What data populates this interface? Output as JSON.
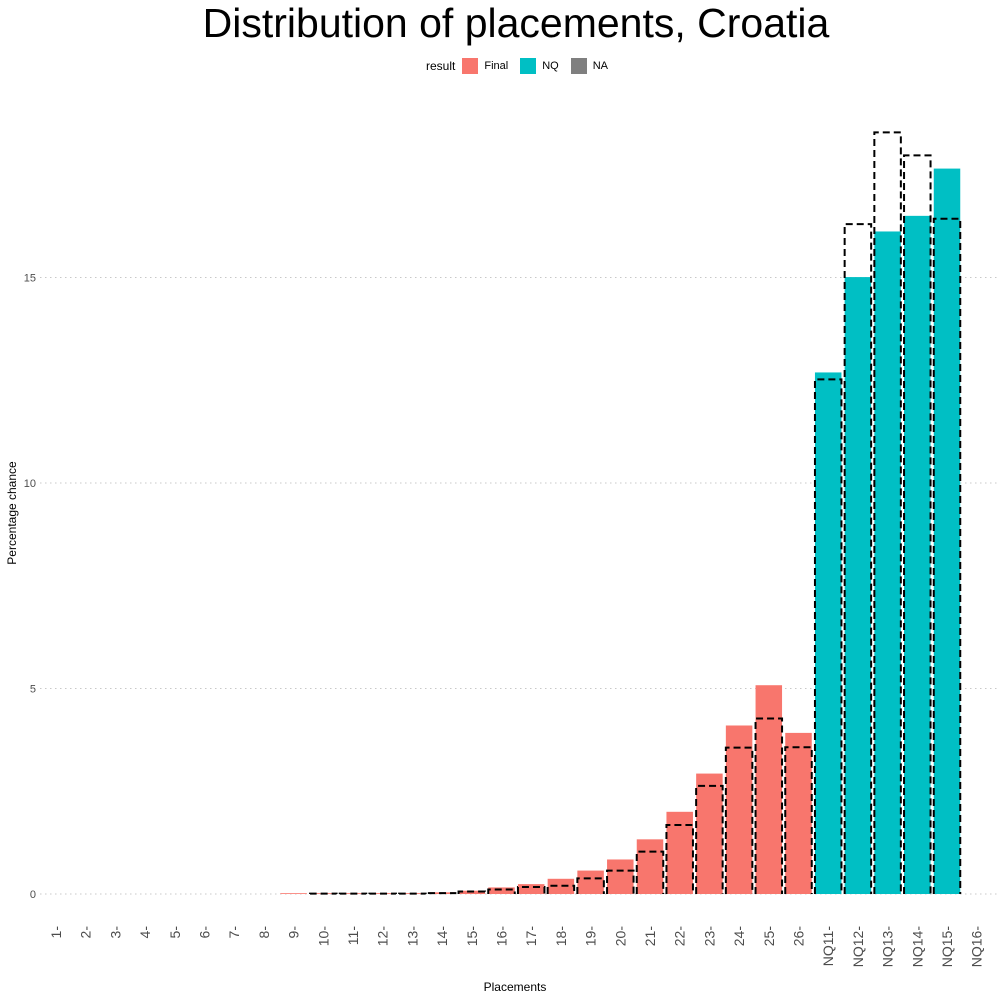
{
  "chart_data": {
    "type": "bar",
    "title": "Distribution of placements, Croatia",
    "xlabel": "Placements",
    "ylabel": "Percentage chance",
    "legend": {
      "title": "result",
      "entries": [
        {
          "label": "Final",
          "color": "#F8766D"
        },
        {
          "label": "NQ",
          "color": "#00BFC4"
        },
        {
          "label": "NA",
          "color": "#7F7F7F"
        }
      ],
      "placement": "top"
    },
    "categories": [
      "1",
      "2",
      "3",
      "4",
      "5",
      "6",
      "7",
      "8",
      "9",
      "10",
      "11",
      "12",
      "13",
      "14",
      "15",
      "16",
      "17",
      "18",
      "19",
      "20",
      "21",
      "22",
      "23",
      "24",
      "25",
      "26",
      "NQ11",
      "NQ12",
      "NQ13",
      "NQ14",
      "NQ15",
      "NQ16"
    ],
    "values": [
      0,
      0,
      0,
      0,
      0,
      0,
      0,
      0,
      0.01,
      0.01,
      0.01,
      0.02,
      0.02,
      0.04,
      0.08,
      0.16,
      0.24,
      0.37,
      0.57,
      0.84,
      1.33,
      2.0,
      2.93,
      4.1,
      5.08,
      3.92,
      12.69,
      15.01,
      16.12,
      16.5,
      17.65,
      0
    ],
    "result": [
      "NA",
      "NA",
      "NA",
      "NA",
      "NA",
      "NA",
      "NA",
      "Final",
      "Final",
      "Final",
      "Final",
      "Final",
      "Final",
      "Final",
      "Final",
      "Final",
      "Final",
      "Final",
      "Final",
      "Final",
      "Final",
      "Final",
      "Final",
      "Final",
      "Final",
      "Final",
      "NQ",
      "NQ",
      "NQ",
      "NQ",
      "NQ",
      "NA"
    ],
    "reference": [
      0,
      0,
      0,
      0,
      0,
      0,
      0,
      0,
      0,
      0.01,
      0.01,
      0.01,
      0.01,
      0.02,
      0.06,
      0.11,
      0.17,
      0.2,
      0.38,
      0.57,
      1.03,
      1.68,
      2.63,
      3.56,
      4.27,
      3.57,
      12.52,
      16.3,
      18.53,
      17.97,
      16.43,
      0
    ],
    "ylim": [
      0,
      18.5
    ],
    "yticks": [
      0,
      5,
      10,
      15
    ],
    "grid": "horizontal dotted"
  }
}
